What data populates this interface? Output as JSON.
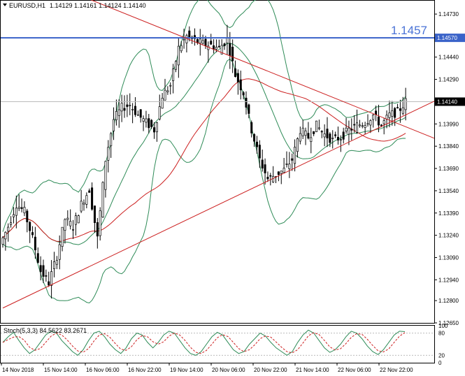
{
  "window": {
    "symbol_label": "EURUSD,H1",
    "ohlc_label": "1.14129 1.14161 1.14124 1.14140",
    "level_label": "1.1457"
  },
  "chart_data": [
    {
      "type": "candlestick",
      "symbol": "EURUSD",
      "timeframe": "H1",
      "ohlc": {
        "open": 1.14129,
        "high": 1.14161,
        "low": 1.14124,
        "close": 1.1414
      },
      "ylim": [
        1.1265,
        1.1482
      ],
      "y_ticks": [
        "1.14730",
        "1.14440",
        "1.14290",
        "1.13990",
        "1.13840",
        "1.13690",
        "1.13540",
        "1.13390",
        "1.13240",
        "1.13090",
        "1.12940",
        "1.12800",
        "1.12650"
      ],
      "y_tick_values": [
        1.1473,
        1.1444,
        1.1429,
        1.1399,
        1.1384,
        1.1369,
        1.1354,
        1.1339,
        1.1324,
        1.1309,
        1.1294,
        1.128,
        1.1265
      ],
      "x_labels": [
        "14 Nov 2018",
        "15 Nov 14:00",
        "16 Nov 06:00",
        "16 Nov 22:00",
        "19 Nov 14:00",
        "20 Nov 06:00",
        "20 Nov 22:00",
        "21 Nov 14:00",
        "22 Nov 06:00",
        "22 Nov 22:00"
      ],
      "horizontal_level": {
        "value": 1.1457,
        "price_tag": "1.14570",
        "text": "1.1457",
        "color": "#3a63c9"
      },
      "current_price": {
        "value": 1.1414,
        "price_tag": "1.14140"
      },
      "trendlines": [
        {
          "from": [
            32,
            1.1483
          ],
          "to": [
            150,
            1.1398
          ],
          "color": "#cc1f1f"
        },
        {
          "from": [
            0,
            1.1275
          ],
          "to": [
            150,
            1.1404
          ],
          "color": "#cc1f1f"
        }
      ],
      "close_path": [
        [
          0,
          1.1318
        ],
        [
          3,
          1.133
        ],
        [
          6,
          1.1345
        ],
        [
          9,
          1.134
        ],
        [
          12,
          1.1322
        ],
        [
          15,
          1.13
        ],
        [
          18,
          1.1292
        ],
        [
          21,
          1.131
        ],
        [
          24,
          1.1335
        ],
        [
          27,
          1.133
        ],
        [
          30,
          1.1345
        ],
        [
          33,
          1.1355
        ],
        [
          36,
          1.1322
        ],
        [
          39,
          1.1375
        ],
        [
          42,
          1.1402
        ],
        [
          45,
          1.141
        ],
        [
          48,
          1.1412
        ],
        [
          51,
          1.1405
        ],
        [
          54,
          1.14
        ],
        [
          57,
          1.1395
        ],
        [
          60,
          1.1418
        ],
        [
          63,
          1.1425
        ],
        [
          66,
          1.145
        ],
        [
          69,
          1.1458
        ],
        [
          72,
          1.1455
        ],
        [
          75,
          1.1453
        ],
        [
          78,
          1.1452
        ],
        [
          81,
          1.145
        ],
        [
          84,
          1.1456
        ],
        [
          87,
          1.1432
        ],
        [
          90,
          1.142
        ],
        [
          93,
          1.1395
        ],
        [
          96,
          1.1375
        ],
        [
          99,
          1.1362
        ],
        [
          102,
          1.1365
        ],
        [
          105,
          1.1368
        ],
        [
          108,
          1.1375
        ],
        [
          111,
          1.1395
        ],
        [
          114,
          1.139
        ],
        [
          117,
          1.1398
        ],
        [
          120,
          1.1392
        ],
        [
          123,
          1.1388
        ],
        [
          126,
          1.139
        ],
        [
          129,
          1.1395
        ],
        [
          132,
          1.1398
        ],
        [
          135,
          1.14
        ],
        [
          138,
          1.1405
        ],
        [
          141,
          1.1398
        ],
        [
          144,
          1.1405
        ],
        [
          147,
          1.1407
        ],
        [
          150,
          1.1414
        ]
      ],
      "indicators": [
        "Bollinger Bands",
        "Moving Average"
      ],
      "oscillator": {
        "label": "Stoch(5,3,3) 84.5622 83.2671",
        "name": "Stoch(5,3,3)",
        "main": 84.5622,
        "signal": 83.2671,
        "ylim": [
          0,
          100
        ],
        "ticks": [
          "100",
          "80",
          "20",
          "0"
        ],
        "main_values": [
          55,
          70,
          82,
          60,
          40,
          25,
          35,
          55,
          75,
          85,
          80,
          60,
          45,
          30,
          20,
          35,
          60,
          80,
          85,
          70,
          50,
          35,
          25,
          40,
          65,
          80,
          75,
          55,
          40,
          55,
          75,
          85,
          80,
          60,
          40,
          25,
          20,
          30,
          50,
          70,
          82,
          75,
          55,
          35,
          25,
          30,
          50,
          65,
          80,
          72,
          55,
          40,
          30,
          20,
          30,
          55,
          75,
          88,
          80,
          60,
          40,
          28,
          35,
          50,
          70,
          85,
          80,
          65,
          45,
          30,
          22,
          35,
          55,
          75,
          85,
          84
        ]
      }
    }
  ]
}
